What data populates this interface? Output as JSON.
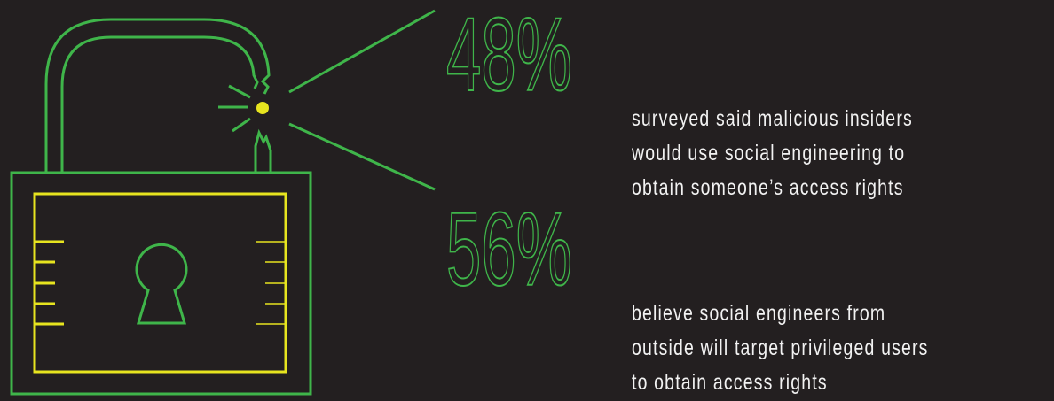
{
  "stats": [
    {
      "value": "48%",
      "lines": [
        "surveyed said malicious insiders",
        "would use social engineering to",
        "obtain someone’s access rights"
      ]
    },
    {
      "value": "56%",
      "lines": [
        "believe social engineers from",
        "outside will target privileged users",
        "to obtain access rights"
      ]
    }
  ]
}
